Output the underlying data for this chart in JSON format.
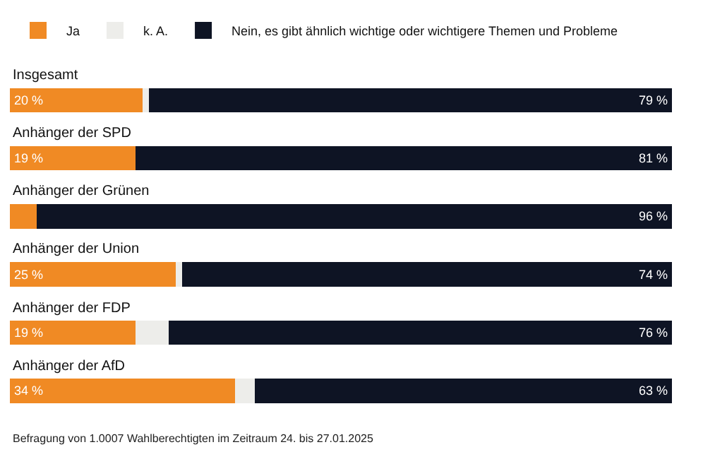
{
  "chart_data": {
    "type": "bar",
    "orientation": "horizontal",
    "stacked": true,
    "categories": [
      "Insgesamt",
      "Anhänger der SPD",
      "Anhänger der Grünen",
      "Anhänger der Union",
      "Anhänger der FDP",
      "Anhänger der AfD"
    ],
    "series": [
      {
        "name": "Ja",
        "color": "#f08a24",
        "values": [
          20,
          19,
          4,
          25,
          19,
          34
        ],
        "value_labels": [
          "20 %",
          "19 %",
          null,
          "25 %",
          "19 %",
          "34 %"
        ]
      },
      {
        "name": "k. A.",
        "color": "#ededea",
        "values": [
          1,
          0,
          0,
          1,
          5,
          3
        ],
        "value_labels": [
          null,
          null,
          null,
          null,
          null,
          null
        ]
      },
      {
        "name": "Nein, es gibt ähnlich wichtige oder wichtigere Themen und Probleme",
        "color": "#0e1424",
        "values": [
          79,
          81,
          96,
          74,
          76,
          63
        ],
        "value_labels": [
          "79 %",
          "81 %",
          "96 %",
          "74 %",
          "76 %",
          "63 %"
        ]
      }
    ],
    "xlim": [
      0,
      100
    ],
    "legend": "top left",
    "annotations": [
      "Befragung von 1.0007 Wahlberechtigten im Zeitraum 24. bis 27.01.2025"
    ]
  }
}
